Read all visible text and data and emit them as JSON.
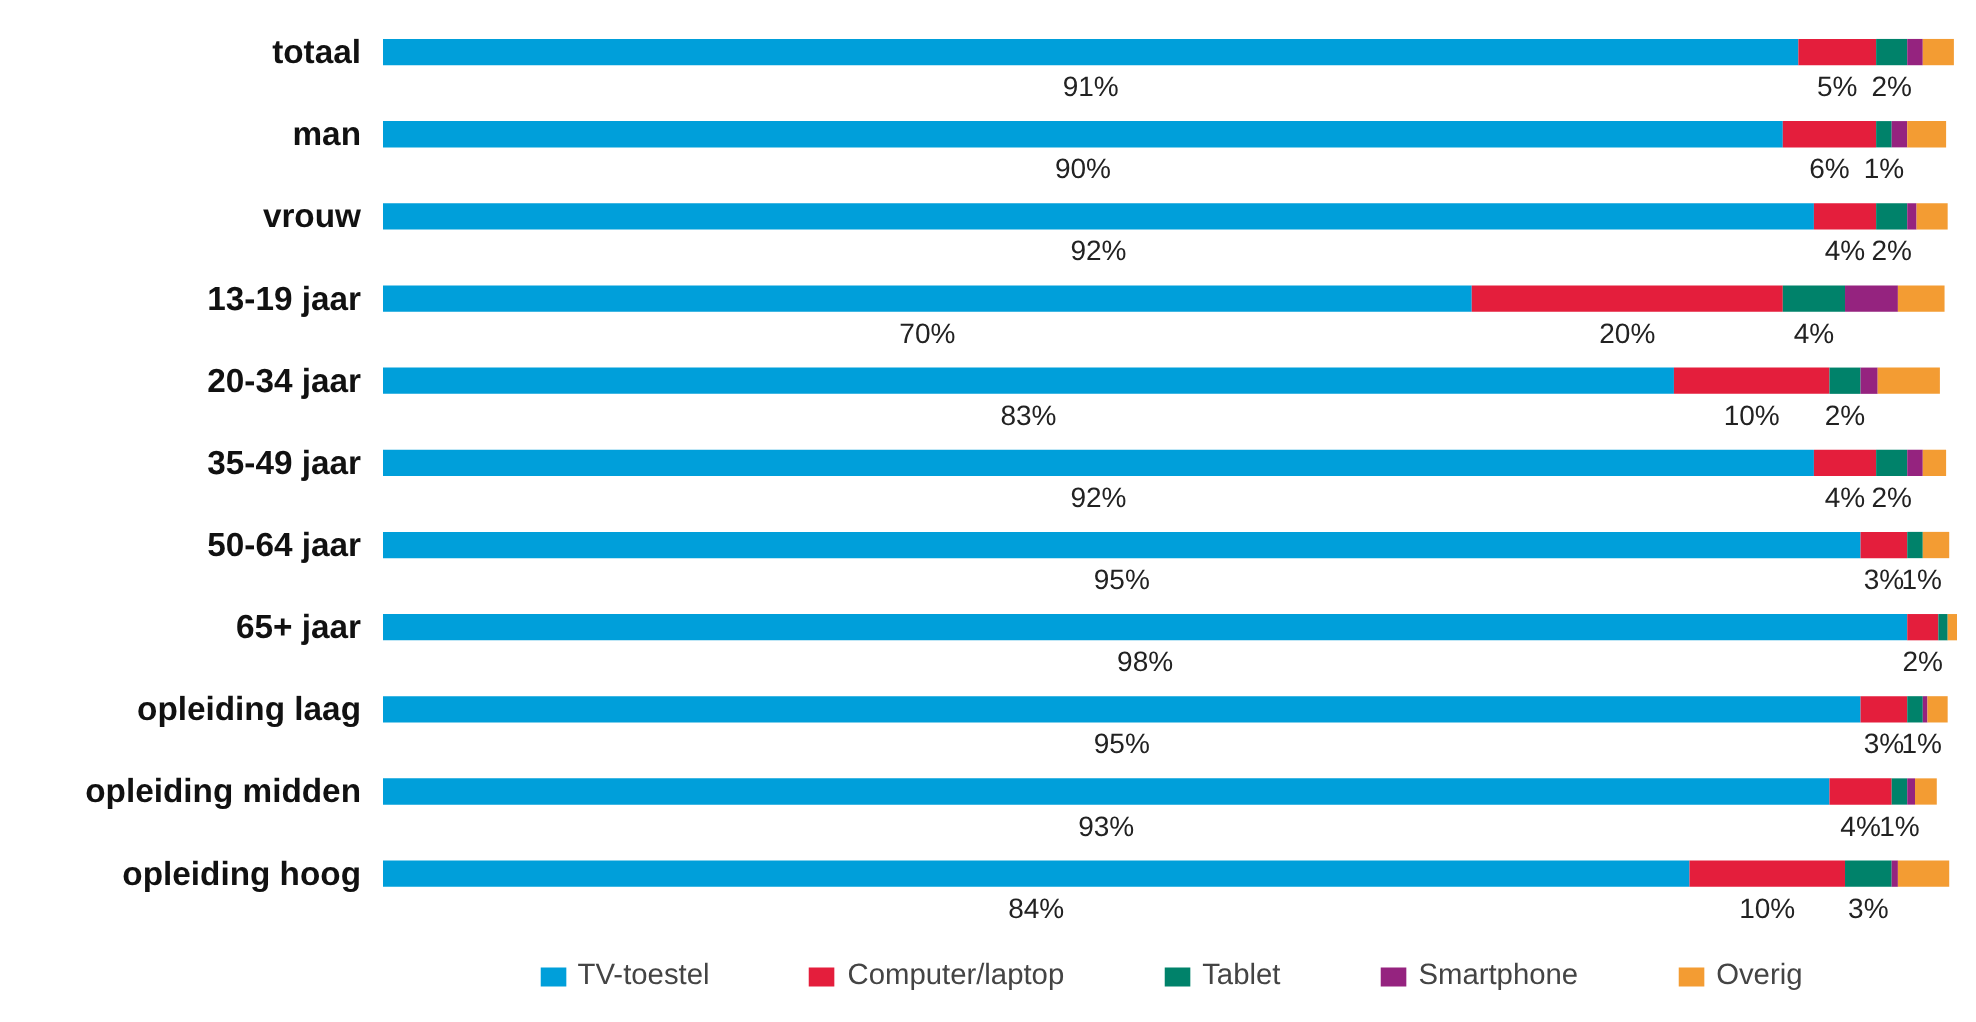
{
  "chart_data": {
    "type": "bar",
    "orientation": "horizontal",
    "stacked": true,
    "legend": "bottom",
    "grid": false,
    "tick_labels": "y",
    "categories": [
      "totaal",
      "man",
      "vrouw",
      "13-19 jaar",
      "20-34 jaar",
      "35-49 jaar",
      "50-64 jaar",
      "65+ jaar",
      "opleiding laag",
      "opleiding midden",
      "opleiding hoog"
    ],
    "series": [
      {
        "name": "TV-toestel",
        "color": "#009fda",
        "values": [
          91,
          90,
          92,
          70,
          83,
          92,
          95,
          98,
          95,
          93,
          84
        ],
        "value_labels": [
          "91%",
          "90%",
          "92%",
          "70%",
          "83%",
          "92%",
          "95%",
          "98%",
          "95%",
          "93%",
          "84%"
        ]
      },
      {
        "name": "Computer/laptop",
        "color": "#e41e3c",
        "values": [
          5,
          6,
          4,
          20,
          10,
          4,
          3,
          2,
          3,
          4,
          10
        ],
        "value_labels": [
          "5%",
          "6%",
          "4%",
          "20%",
          "10%",
          "4%",
          "3%",
          "2%",
          "3%",
          "4%",
          "10%"
        ]
      },
      {
        "name": "Tablet",
        "color": "#00826a",
        "values": [
          2,
          1,
          2,
          4,
          2,
          2,
          1,
          0.6,
          1,
          1,
          3
        ],
        "value_labels": [
          "2%",
          "1%",
          "2%",
          "4%",
          "2%",
          "2%",
          "1%",
          null,
          "1%",
          "1%",
          "3%"
        ]
      },
      {
        "name": "Smartphone",
        "color": "#95237f",
        "values": [
          1,
          1,
          0.6,
          3.4,
          1.1,
          1,
          0,
          0,
          0.3,
          0.5,
          0.4
        ]
      },
      {
        "name": "Overig",
        "color": "#f39c33",
        "values": [
          2,
          2.5,
          2,
          3,
          4,
          1.5,
          1.7,
          0.6,
          1.3,
          1.4,
          3.3
        ]
      }
    ]
  }
}
